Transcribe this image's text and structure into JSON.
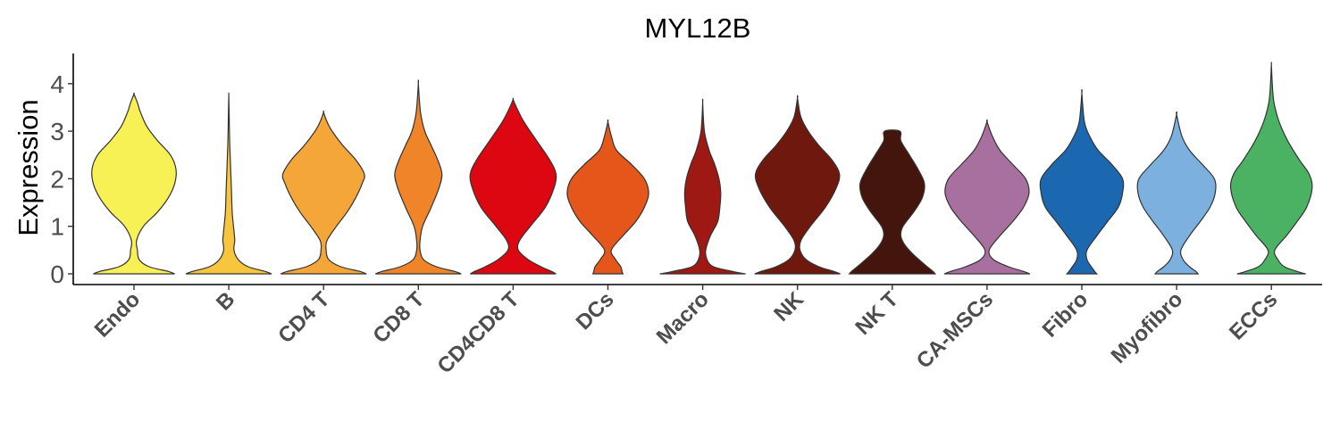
{
  "chart_data": {
    "type": "violin",
    "title": "MYL12B",
    "xlabel": "",
    "ylabel": "Expression",
    "ylim": [
      -0.25,
      4.6
    ],
    "yticks": [
      0,
      1,
      2,
      3,
      4
    ],
    "grid": false,
    "legend": "none",
    "categories": [
      "Endo",
      "B",
      "CD4 T",
      "CD8 T",
      "CD4CD8 T",
      "DCs",
      "Macro",
      "NK",
      "NK T",
      "CA-MSCs",
      "Fibro",
      "Myofibro",
      "ECCs"
    ],
    "series": [
      {
        "category": "Endo",
        "color": "#F7F156",
        "min": 0,
        "max": 3.78,
        "widths": [
          [
            0.0,
            0.95
          ],
          [
            0.05,
            0.8
          ],
          [
            0.15,
            0.35
          ],
          [
            0.3,
            0.12
          ],
          [
            0.5,
            0.08
          ],
          [
            0.7,
            0.06
          ],
          [
            1.0,
            0.22
          ],
          [
            1.3,
            0.55
          ],
          [
            1.6,
            0.8
          ],
          [
            1.9,
            0.95
          ],
          [
            2.2,
            0.98
          ],
          [
            2.5,
            0.85
          ],
          [
            2.8,
            0.55
          ],
          [
            3.1,
            0.3
          ],
          [
            3.4,
            0.15
          ],
          [
            3.6,
            0.08
          ],
          [
            3.78,
            0.0
          ]
        ]
      },
      {
        "category": "B",
        "color": "#F7C53E",
        "min": 0,
        "max": 3.75,
        "widths": [
          [
            0.0,
            1.0
          ],
          [
            0.05,
            0.85
          ],
          [
            0.15,
            0.45
          ],
          [
            0.3,
            0.22
          ],
          [
            0.5,
            0.12
          ],
          [
            0.7,
            0.14
          ],
          [
            0.9,
            0.12
          ],
          [
            1.3,
            0.08
          ],
          [
            1.8,
            0.06
          ],
          [
            2.3,
            0.04
          ],
          [
            2.8,
            0.02
          ],
          [
            3.3,
            0.01
          ],
          [
            3.75,
            0.0
          ]
        ]
      },
      {
        "category": "CD4 T",
        "color": "#F4A738",
        "min": 0,
        "max": 3.4,
        "widths": [
          [
            0.0,
            1.0
          ],
          [
            0.05,
            0.85
          ],
          [
            0.15,
            0.4
          ],
          [
            0.3,
            0.12
          ],
          [
            0.5,
            0.06
          ],
          [
            0.7,
            0.08
          ],
          [
            1.0,
            0.3
          ],
          [
            1.3,
            0.55
          ],
          [
            1.6,
            0.75
          ],
          [
            1.9,
            0.9
          ],
          [
            2.1,
            0.95
          ],
          [
            2.4,
            0.75
          ],
          [
            2.7,
            0.45
          ],
          [
            3.0,
            0.2
          ],
          [
            3.2,
            0.08
          ],
          [
            3.4,
            0.0
          ]
        ]
      },
      {
        "category": "CD8 T",
        "color": "#EF8428",
        "min": 0,
        "max": 4.0,
        "widths": [
          [
            0.0,
            1.0
          ],
          [
            0.05,
            0.85
          ],
          [
            0.15,
            0.42
          ],
          [
            0.3,
            0.12
          ],
          [
            0.5,
            0.04
          ],
          [
            0.7,
            0.04
          ],
          [
            1.0,
            0.1
          ],
          [
            1.4,
            0.3
          ],
          [
            1.8,
            0.48
          ],
          [
            2.1,
            0.55
          ],
          [
            2.4,
            0.45
          ],
          [
            2.7,
            0.3
          ],
          [
            3.0,
            0.15
          ],
          [
            3.4,
            0.05
          ],
          [
            4.0,
            0.0
          ]
        ]
      },
      {
        "category": "CD4CD8 T",
        "color": "#DC0710",
        "min": 0,
        "max": 3.67,
        "widths": [
          [
            0.0,
            1.0
          ],
          [
            0.05,
            0.9
          ],
          [
            0.15,
            0.65
          ],
          [
            0.3,
            0.35
          ],
          [
            0.5,
            0.12
          ],
          [
            0.7,
            0.15
          ],
          [
            1.0,
            0.4
          ],
          [
            1.4,
            0.75
          ],
          [
            1.8,
            0.95
          ],
          [
            2.1,
            1.0
          ],
          [
            2.4,
            0.85
          ],
          [
            2.8,
            0.55
          ],
          [
            3.2,
            0.25
          ],
          [
            3.5,
            0.08
          ],
          [
            3.67,
            0.0
          ]
        ]
      },
      {
        "category": "DCs",
        "color": "#E4561A",
        "min": 0,
        "max": 3.2,
        "widths": [
          [
            0.0,
            0.35
          ],
          [
            0.05,
            0.33
          ],
          [
            0.15,
            0.3
          ],
          [
            0.3,
            0.18
          ],
          [
            0.5,
            0.08
          ],
          [
            0.8,
            0.35
          ],
          [
            1.1,
            0.65
          ],
          [
            1.4,
            0.85
          ],
          [
            1.7,
            0.95
          ],
          [
            2.0,
            0.85
          ],
          [
            2.3,
            0.55
          ],
          [
            2.6,
            0.2
          ],
          [
            2.9,
            0.08
          ],
          [
            3.2,
            0.0
          ]
        ]
      },
      {
        "category": "Macro",
        "color": "#9E1914",
        "min": 0,
        "max": 3.6,
        "widths": [
          [
            0.0,
            1.0
          ],
          [
            0.05,
            0.7
          ],
          [
            0.15,
            0.25
          ],
          [
            0.3,
            0.1
          ],
          [
            0.5,
            0.07
          ],
          [
            0.8,
            0.18
          ],
          [
            1.1,
            0.35
          ],
          [
            1.4,
            0.4
          ],
          [
            1.7,
            0.42
          ],
          [
            2.0,
            0.38
          ],
          [
            2.3,
            0.28
          ],
          [
            2.6,
            0.15
          ],
          [
            3.0,
            0.04
          ],
          [
            3.6,
            0.0
          ]
        ]
      },
      {
        "category": "NK",
        "color": "#6F190E",
        "min": 0,
        "max": 3.7,
        "widths": [
          [
            0.0,
            1.0
          ],
          [
            0.05,
            0.85
          ],
          [
            0.15,
            0.5
          ],
          [
            0.3,
            0.2
          ],
          [
            0.5,
            0.06
          ],
          [
            0.7,
            0.08
          ],
          [
            1.0,
            0.3
          ],
          [
            1.4,
            0.65
          ],
          [
            1.8,
            0.9
          ],
          [
            2.1,
            0.98
          ],
          [
            2.4,
            0.8
          ],
          [
            2.7,
            0.5
          ],
          [
            3.0,
            0.25
          ],
          [
            3.3,
            0.08
          ],
          [
            3.7,
            0.0
          ]
        ]
      },
      {
        "category": "NK T",
        "color": "#43150C",
        "min": 0,
        "max": 3.0,
        "widths": [
          [
            0.0,
            1.0
          ],
          [
            0.05,
            0.95
          ],
          [
            0.2,
            0.75
          ],
          [
            0.4,
            0.5
          ],
          [
            0.6,
            0.3
          ],
          [
            0.8,
            0.2
          ],
          [
            1.0,
            0.25
          ],
          [
            1.3,
            0.5
          ],
          [
            1.6,
            0.7
          ],
          [
            1.9,
            0.75
          ],
          [
            2.2,
            0.6
          ],
          [
            2.5,
            0.4
          ],
          [
            2.8,
            0.2
          ],
          [
            3.0,
            0.18
          ]
        ]
      },
      {
        "category": "CA-MSCs",
        "color": "#A8709E",
        "min": 0,
        "max": 3.2,
        "widths": [
          [
            0.0,
            1.0
          ],
          [
            0.05,
            0.85
          ],
          [
            0.15,
            0.5
          ],
          [
            0.3,
            0.15
          ],
          [
            0.5,
            0.05
          ],
          [
            0.8,
            0.3
          ],
          [
            1.1,
            0.6
          ],
          [
            1.4,
            0.85
          ],
          [
            1.7,
            0.98
          ],
          [
            2.0,
            0.9
          ],
          [
            2.3,
            0.6
          ],
          [
            2.6,
            0.3
          ],
          [
            2.9,
            0.12
          ],
          [
            3.2,
            0.0
          ]
        ]
      },
      {
        "category": "Fibro",
        "color": "#1B67B0",
        "min": 0,
        "max": 3.8,
        "widths": [
          [
            0.0,
            0.35
          ],
          [
            0.05,
            0.3
          ],
          [
            0.15,
            0.22
          ],
          [
            0.3,
            0.12
          ],
          [
            0.5,
            0.12
          ],
          [
            0.8,
            0.35
          ],
          [
            1.1,
            0.6
          ],
          [
            1.4,
            0.85
          ],
          [
            1.7,
            0.95
          ],
          [
            2.0,
            0.95
          ],
          [
            2.3,
            0.7
          ],
          [
            2.6,
            0.38
          ],
          [
            2.9,
            0.18
          ],
          [
            3.2,
            0.06
          ],
          [
            3.8,
            0.0
          ]
        ]
      },
      {
        "category": "Myofibro",
        "color": "#7BB0DF",
        "min": 0,
        "max": 3.35,
        "widths": [
          [
            0.0,
            0.5
          ],
          [
            0.05,
            0.45
          ],
          [
            0.15,
            0.3
          ],
          [
            0.3,
            0.15
          ],
          [
            0.5,
            0.1
          ],
          [
            0.8,
            0.3
          ],
          [
            1.1,
            0.55
          ],
          [
            1.4,
            0.78
          ],
          [
            1.7,
            0.9
          ],
          [
            2.0,
            0.88
          ],
          [
            2.3,
            0.6
          ],
          [
            2.6,
            0.3
          ],
          [
            2.9,
            0.12
          ],
          [
            3.35,
            0.0
          ]
        ]
      },
      {
        "category": "ECCs",
        "color": "#4BB264",
        "min": 0,
        "max": 4.4,
        "widths": [
          [
            0.0,
            0.8
          ],
          [
            0.05,
            0.6
          ],
          [
            0.15,
            0.3
          ],
          [
            0.3,
            0.15
          ],
          [
            0.5,
            0.08
          ],
          [
            0.8,
            0.35
          ],
          [
            1.1,
            0.6
          ],
          [
            1.4,
            0.82
          ],
          [
            1.8,
            0.95
          ],
          [
            2.1,
            0.88
          ],
          [
            2.4,
            0.65
          ],
          [
            2.8,
            0.38
          ],
          [
            3.2,
            0.18
          ],
          [
            3.6,
            0.06
          ],
          [
            4.0,
            0.02
          ],
          [
            4.4,
            0.0
          ]
        ]
      }
    ]
  }
}
